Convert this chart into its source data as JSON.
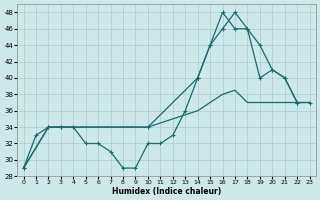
{
  "bg_color": "#cce8e8",
  "grid_color": "#aacccc",
  "line_color": "#1a6b6b",
  "xlabel": "Humidex (Indice chaleur)",
  "xlim": [
    -0.5,
    23.5
  ],
  "ylim": [
    28,
    49
  ],
  "yticks": [
    28,
    30,
    32,
    34,
    36,
    38,
    40,
    42,
    44,
    46,
    48
  ],
  "xticks": [
    0,
    1,
    2,
    3,
    4,
    5,
    6,
    7,
    8,
    9,
    10,
    11,
    12,
    13,
    14,
    15,
    16,
    17,
    18,
    19,
    20,
    21,
    22,
    23
  ],
  "line1_x": [
    0,
    1,
    2,
    3,
    4,
    5,
    6,
    7,
    8,
    9,
    10,
    11,
    12,
    13,
    14,
    15,
    16,
    17,
    18,
    19,
    20,
    21,
    22
  ],
  "line1_y": [
    29,
    33,
    34,
    34,
    34,
    32,
    32,
    31,
    29,
    29,
    32,
    32,
    33,
    36,
    40,
    44,
    48,
    46,
    46,
    40,
    41,
    40,
    37
  ],
  "line2_x": [
    0,
    2,
    3,
    10,
    14,
    16,
    17,
    18,
    19,
    20,
    21,
    22,
    23
  ],
  "line2_y": [
    29,
    34,
    34,
    34,
    36,
    38,
    38.5,
    37,
    37,
    37,
    37,
    37,
    37
  ],
  "line3_x": [
    0,
    2,
    3,
    10,
    14,
    15,
    16,
    17,
    18,
    19,
    20,
    21,
    22,
    23
  ],
  "line3_y": [
    29,
    34,
    34,
    34,
    40,
    44,
    46,
    48,
    46,
    44,
    41,
    40,
    37,
    37
  ]
}
